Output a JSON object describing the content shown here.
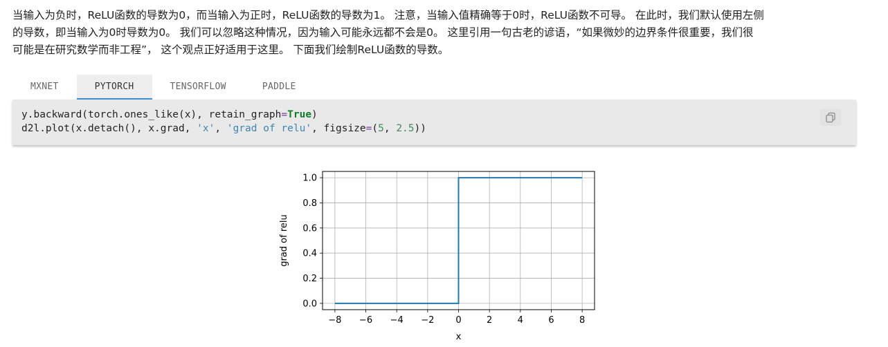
{
  "paragraph": {
    "lines": [
      "当输入为负时，ReLU函数的导数为0，而当输入为正时，ReLU函数的导数为1。 注意，当输入值精确等于0时，ReLU函数不可导。 在此时，我们默认使用左侧",
      "的导数，即当输入为0时导数为0。 我们可以忽略这种情况，因为输入可能永远都不会是0。 这里引用一句古老的谚语，“如果微妙的边界条件很重要，我们很",
      "可能是在研究数学而非工程”， 这个观点正好适用于这里。 下面我们绘制ReLU函数的导数。"
    ]
  },
  "tabs": [
    {
      "label": "MXNET",
      "active": false
    },
    {
      "label": "PYTORCH",
      "active": true
    },
    {
      "label": "TENSORFLOW",
      "active": false
    },
    {
      "label": "PADDLE",
      "active": false
    }
  ],
  "code": {
    "line1": {
      "a": "y.backward(torch.ones_like(x), retain_graph",
      "op": "=",
      "kw": "True",
      "b": ")"
    },
    "line2": {
      "a": "d2l.plot(x.detach(), x.grad, ",
      "s1": "'x'",
      "c1": ", ",
      "s2": "'grad of relu'",
      "c2": ", figsize",
      "op": "=",
      "p1": "(",
      "n1": "5",
      "c3": ", ",
      "n2": "2.5",
      "p2": "))"
    },
    "copy_icon": "copy-icon"
  },
  "chart_data": {
    "type": "line",
    "xlabel": "x",
    "ylabel": "grad of relu",
    "xlim": [
      -8.8,
      8.8
    ],
    "ylim": [
      -0.05,
      1.05
    ],
    "xticks": [
      -8,
      -6,
      -4,
      -2,
      0,
      2,
      4,
      6,
      8
    ],
    "xtick_labels": [
      "−8",
      "−6",
      "−4",
      "−2",
      "0",
      "2",
      "4",
      "6",
      "8"
    ],
    "yticks": [
      0.0,
      0.2,
      0.4,
      0.6,
      0.8,
      1.0
    ],
    "ytick_labels": [
      "0.0",
      "0.2",
      "0.4",
      "0.6",
      "0.8",
      "1.0"
    ],
    "grid": true,
    "series": [
      {
        "color": "#1f77b4",
        "x": [
          -8.0,
          0.0,
          0.0,
          8.0
        ],
        "y": [
          0.0,
          0.0,
          1.0,
          1.0
        ]
      }
    ]
  }
}
